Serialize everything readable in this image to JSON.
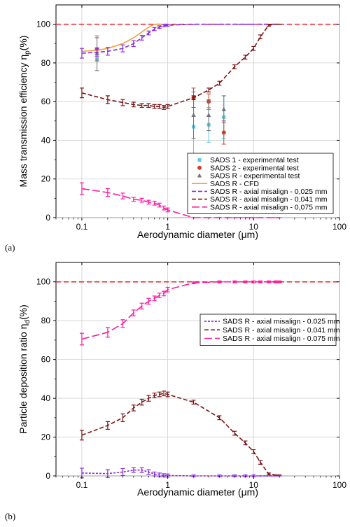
{
  "chart_data": [
    {
      "type": "line",
      "panel_label": "(a)",
      "xlabel": "Aerodynamic diameter (μm)",
      "ylabel": "Mass transmission efficiency η",
      "ylabel_sub": "p",
      "ylabel_unit": "(%)",
      "xscale": "log",
      "xlim": [
        0.05,
        100
      ],
      "ylim": [
        0,
        110
      ],
      "xticks": [
        0.1,
        1,
        10,
        100
      ],
      "xtick_labels": [
        "0.1",
        "1",
        "10",
        "100"
      ],
      "yticks": [
        0,
        20,
        40,
        60,
        80,
        100
      ],
      "ytick_labels": [
        "0",
        "20",
        "40",
        "60",
        "80",
        "100"
      ],
      "grid": true,
      "reference_line": {
        "y": 100,
        "color": "#e8202a"
      },
      "legend_position": "lower-right",
      "series": [
        {
          "name": "SADS 1 - experimental test",
          "kind": "marker",
          "marker": "square",
          "color": "#5fc7e0",
          "x": [
            0.15,
            2,
            3,
            4.5
          ],
          "y": [
            82,
            47,
            48,
            52
          ],
          "err": [
            6,
            15,
            9,
            11
          ]
        },
        {
          "name": "SADS 2 - experimental test",
          "kind": "marker",
          "marker": "circle",
          "color": "#c8412a",
          "x": [
            0.15,
            2,
            3,
            4.5
          ],
          "y": [
            87,
            62,
            60,
            44
          ],
          "err": [
            6,
            5,
            4,
            6
          ]
        },
        {
          "name": "SADS R - experimental test",
          "kind": "marker",
          "marker": "triangle",
          "color": "#707478",
          "x": [
            0.15,
            2,
            3,
            4.5
          ],
          "y": [
            85,
            53,
            53,
            56
          ],
          "err": [
            9,
            12,
            8,
            7
          ]
        },
        {
          "name": "SADS R - CFD",
          "kind": "line",
          "dash": "solid",
          "color": "#f0a040",
          "x": [
            0.1,
            0.15,
            0.2,
            0.3,
            0.4,
            0.5,
            0.6,
            0.7,
            0.8,
            1.0
          ],
          "y": [
            86,
            86.5,
            87.5,
            90,
            93,
            96,
            98.5,
            100,
            100,
            100
          ]
        },
        {
          "name": "SADS R - axial misalign - 0,025 mm",
          "kind": "line",
          "dash": "dashed",
          "color": "#8a2be2",
          "errbar": true,
          "x": [
            0.1,
            0.15,
            0.2,
            0.3,
            0.4,
            0.5,
            0.6,
            0.7,
            0.8,
            0.9,
            1,
            2,
            3,
            4,
            5,
            6,
            7,
            8,
            9,
            10,
            12,
            14,
            16,
            18,
            20
          ],
          "y": [
            85,
            85.5,
            86,
            87.5,
            90,
            93,
            95.5,
            97.5,
            98.5,
            99.3,
            99.5,
            100,
            100,
            100,
            100,
            100,
            100,
            100,
            100,
            100,
            100,
            100,
            100,
            100,
            100
          ],
          "err": [
            2.5,
            2,
            2,
            1.8,
            1.5,
            1.2,
            1,
            0.8,
            0.7,
            0.6,
            0.5,
            0,
            0,
            0,
            0,
            0,
            0,
            0,
            0,
            0,
            0,
            0,
            0,
            0,
            0
          ]
        },
        {
          "name": "SADS R - axial misalign - 0,041 mm",
          "kind": "line",
          "dash": "dashed",
          "color": "#7a1414",
          "errbar": true,
          "x": [
            0.1,
            0.2,
            0.3,
            0.4,
            0.5,
            0.6,
            0.7,
            0.8,
            0.9,
            1.0,
            2,
            3,
            4,
            6,
            8,
            10,
            12,
            15,
            18,
            20
          ],
          "y": [
            64.5,
            61,
            59.5,
            58.5,
            58,
            58,
            57.5,
            57.5,
            57,
            57.5,
            62,
            66,
            69.5,
            78,
            83,
            87.5,
            93.5,
            99.5,
            100,
            100
          ],
          "err": [
            2.5,
            2,
            1.6,
            1.2,
            1,
            1,
            1,
            1,
            1,
            1,
            1,
            1,
            1,
            1,
            1,
            1,
            1,
            0.5,
            0,
            0
          ]
        },
        {
          "name": "SADS R - axial misalign - 0,075 mm",
          "kind": "line",
          "dash": "longdash",
          "color": "#ff1aa0",
          "errbar": true,
          "x": [
            0.1,
            0.2,
            0.3,
            0.4,
            0.5,
            0.6,
            0.7,
            0.8,
            0.9,
            1.0,
            2,
            3,
            4,
            5,
            6,
            8,
            10,
            12,
            15,
            18,
            20
          ],
          "y": [
            15,
            13,
            11.2,
            9.5,
            9,
            8,
            7.5,
            6.5,
            5,
            4,
            0,
            0,
            0,
            0,
            0,
            0,
            0,
            0,
            0,
            0,
            0
          ],
          "err": [
            3,
            2,
            1.5,
            1,
            1,
            1,
            1,
            1,
            1,
            1,
            0,
            0,
            0,
            0,
            0,
            0,
            0,
            0,
            0,
            0,
            0
          ]
        }
      ]
    },
    {
      "type": "line",
      "panel_label": "(b)",
      "xlabel": "Aerodynamic diameter (μm)",
      "ylabel": "Particle deposition ratio η",
      "ylabel_sub": "d",
      "ylabel_unit": "(%)",
      "xscale": "log",
      "xlim": [
        0.05,
        100
      ],
      "ylim": [
        0,
        110
      ],
      "xticks": [
        0.1,
        1,
        10,
        100
      ],
      "xtick_labels": [
        "0.1",
        "1",
        "10",
        "100"
      ],
      "yticks": [
        0,
        20,
        40,
        60,
        80,
        100
      ],
      "ytick_labels": [
        "0",
        "20",
        "40",
        "60",
        "80",
        "100"
      ],
      "grid": true,
      "reference_line": {
        "y": 100,
        "color": "#e8202a"
      },
      "legend_position": "upper-right",
      "series": [
        {
          "name": "SADS R - axial misalign - 0.025 mm",
          "kind": "line",
          "dash": "dotted",
          "color": "#8a2be2",
          "errbar": true,
          "x": [
            0.1,
            0.2,
            0.3,
            0.4,
            0.5,
            0.6,
            0.7,
            0.8,
            0.9,
            1.0,
            2,
            4,
            6,
            8,
            10,
            12,
            14,
            16,
            18,
            20
          ],
          "y": [
            1.5,
            1.2,
            2,
            3,
            3,
            2,
            1,
            0.5,
            0.3,
            0.2,
            0,
            0,
            0,
            0,
            0,
            0,
            0,
            0,
            0,
            0
          ],
          "err": [
            2.5,
            2,
            1.8,
            1.2,
            1.2,
            1.2,
            1,
            1,
            0.8,
            0.8,
            0.5,
            0.5,
            0.5,
            0.5,
            0.5,
            0,
            0,
            0,
            0,
            0
          ]
        },
        {
          "name": "SADS R - axial misalign - 0.041 mm",
          "kind": "line",
          "dash": "dashed",
          "color": "#7a1414",
          "errbar": true,
          "x": [
            0.1,
            0.2,
            0.3,
            0.4,
            0.5,
            0.6,
            0.7,
            0.8,
            0.9,
            1.0,
            2,
            4,
            6,
            8,
            10,
            12,
            15,
            18,
            20
          ],
          "y": [
            21,
            26,
            30,
            35,
            38,
            40,
            41.5,
            42,
            42.5,
            42,
            38,
            30,
            22,
            17,
            12.5,
            7,
            1,
            0.5,
            0.5
          ],
          "err": [
            2.5,
            2,
            2,
            1.5,
            1.5,
            1.5,
            1.2,
            1.2,
            1.2,
            1.2,
            1,
            1,
            1,
            1,
            1,
            1,
            0.5,
            0,
            0
          ]
        },
        {
          "name": "SADS R - axial misalign - 0.075 mm",
          "kind": "line",
          "dash": "longdash",
          "color": "#ff1aa0",
          "errbar": true,
          "x": [
            0.1,
            0.2,
            0.3,
            0.4,
            0.5,
            0.6,
            0.7,
            0.8,
            0.9,
            1.0,
            2,
            4,
            6,
            8,
            10,
            12,
            15,
            18,
            20
          ],
          "y": [
            70.5,
            74,
            78.5,
            84,
            87.5,
            90,
            91.5,
            93,
            94,
            96,
            99.5,
            100,
            100,
            100,
            100,
            100,
            100,
            100,
            100
          ],
          "err": [
            3,
            2.5,
            2,
            1.5,
            1.5,
            1.5,
            1.2,
            1.2,
            1.2,
            1.2,
            0.5,
            0.5,
            0.5,
            0.5,
            0.5,
            0.5,
            0.5,
            0.5,
            0.5
          ]
        }
      ]
    }
  ]
}
